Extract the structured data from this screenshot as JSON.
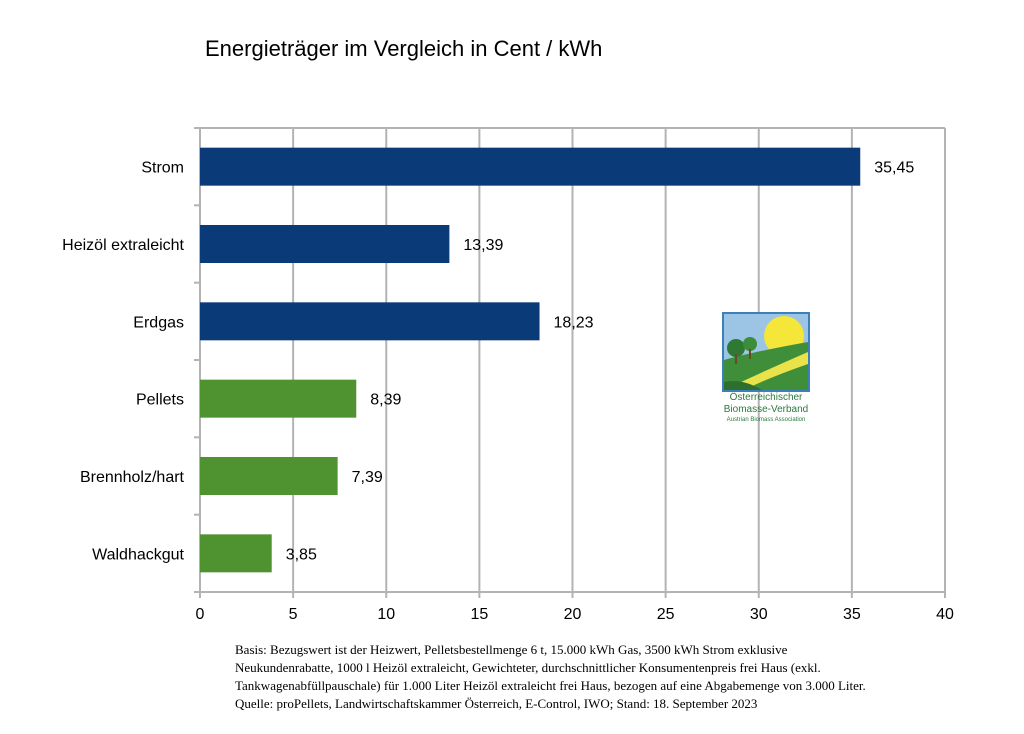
{
  "chart_data": {
    "type": "bar",
    "orientation": "horizontal",
    "title": "Energieträger im Vergleich in Cent / kWh",
    "categories": [
      "Strom",
      "Heizöl extraleicht",
      "Erdgas",
      "Pellets",
      "Brennholz/hart",
      "Waldhackgut"
    ],
    "values": [
      35.45,
      13.39,
      18.23,
      8.39,
      7.39,
      3.85
    ],
    "value_labels": [
      "35,45",
      "13,39",
      "18,23",
      "8,39",
      "7,39",
      "3,85"
    ],
    "bar_colors": [
      "#0b3a78",
      "#0b3a78",
      "#0b3a78",
      "#4e9330",
      "#4e9330",
      "#4e9330"
    ],
    "xlim": [
      0,
      40
    ],
    "xticks": [
      0,
      5,
      10,
      15,
      20,
      25,
      30,
      35,
      40
    ],
    "grid": true,
    "xlabel": "",
    "ylabel": ""
  },
  "logo": {
    "line1": "Österreichischer",
    "line2": "Biomasse-Verband",
    "line3": "Austrian Biomass Association"
  },
  "footnote": {
    "line1": "Basis: Bezugswert ist der Heizwert, Pelletsbestellmenge 6 t, 15.000 kWh Gas, 3500 kWh Strom exklusive",
    "line2": "Neukundenrabatte, 1000 l Heizöl extraleicht, Gewichteter, durchschnittlicher Konsumentenpreis frei Haus (exkl.",
    "line3": "Tankwagenabfüllpauschale) für 1.000 Liter Heizöl extraleicht frei Haus, bezogen auf eine Abgabemenge von 3.000 Liter.",
    "line4": "Quelle: proPellets, Landwirtschaftskammer Österreich, E-Control, IWO; Stand: 18. September 2023"
  }
}
